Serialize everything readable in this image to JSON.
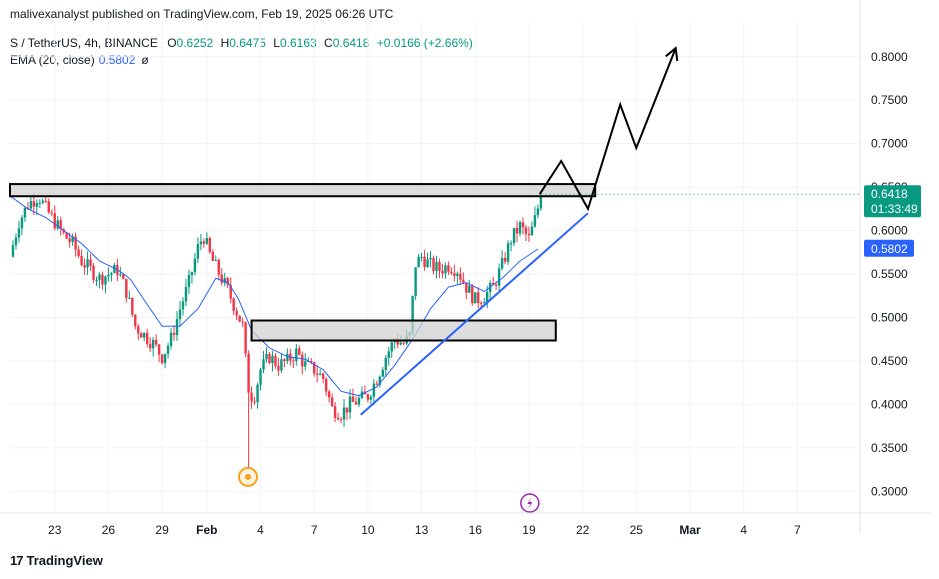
{
  "header": {
    "publisher_line": "malivexanalyst published on TradingView.com, Feb 19, 2025 06:26 UTC"
  },
  "legend": {
    "symbol": "S / TetherUS, 4h, BINANCE",
    "open_label": "O",
    "open": "0.6252",
    "high_label": "H",
    "high": "0.6475",
    "low_label": "L",
    "low": "0.6163",
    "close_label": "C",
    "close": "0.6418",
    "change": "+0.0166 (+2.66%)",
    "ema_label": "EMA (20, close)",
    "ema_value": "0.5802",
    "ema_icon": "ø"
  },
  "price_badge": {
    "value": "0.6418",
    "countdown": "01:33:49",
    "color": "#089981"
  },
  "ema_badge": {
    "value": "0.5802",
    "color": "#2962ff"
  },
  "footer": {
    "logo_icon": "17",
    "logo_text": "TradingView"
  },
  "colors": {
    "up": "#089981",
    "down": "#f23645",
    "ema": "#2962ff",
    "trendline": "#2962ff",
    "zone_fill": "#d1d1d1",
    "grid": "#f0f3fa"
  },
  "chart_data": {
    "type": "candlestick",
    "ylim": [
      0.275,
      0.84
    ],
    "yticks": [
      0.3,
      0.35,
      0.4,
      0.45,
      0.5,
      0.55,
      0.6,
      0.65,
      0.7,
      0.75,
      0.8
    ],
    "ytick_labels": [
      "0.3000",
      "0.3500",
      "0.4000",
      "0.4500",
      "0.5000",
      "0.5500",
      "0.6000",
      "0.6500",
      "0.7000",
      "0.7500",
      "0.8000"
    ],
    "xlim": [
      0,
      47.5
    ],
    "xticks": [
      {
        "x": 2.5,
        "label": "23"
      },
      {
        "x": 5.5,
        "label": "26"
      },
      {
        "x": 8.5,
        "label": "29"
      },
      {
        "x": 11,
        "label": "Feb"
      },
      {
        "x": 14,
        "label": "4"
      },
      {
        "x": 17,
        "label": "7"
      },
      {
        "x": 20,
        "label": "10"
      },
      {
        "x": 23,
        "label": "13"
      },
      {
        "x": 26,
        "label": "16"
      },
      {
        "x": 29,
        "label": "19"
      },
      {
        "x": 32,
        "label": "22"
      },
      {
        "x": 35,
        "label": "25"
      },
      {
        "x": 38,
        "label": "Mar"
      },
      {
        "x": 41,
        "label": "4"
      },
      {
        "x": 44,
        "label": "7"
      }
    ],
    "price_keypoints": [
      [
        0.0,
        0.57
      ],
      [
        0.5,
        0.61
      ],
      [
        1.0,
        0.63
      ],
      [
        1.6,
        0.64
      ],
      [
        2.0,
        0.625
      ],
      [
        2.5,
        0.61
      ],
      [
        3.0,
        0.595
      ],
      [
        3.5,
        0.585
      ],
      [
        4.0,
        0.565
      ],
      [
        4.5,
        0.555
      ],
      [
        5.0,
        0.545
      ],
      [
        5.5,
        0.55
      ],
      [
        6.0,
        0.555
      ],
      [
        6.5,
        0.53
      ],
      [
        7.0,
        0.49
      ],
      [
        7.5,
        0.48
      ],
      [
        8.0,
        0.47
      ],
      [
        8.5,
        0.455
      ],
      [
        9.0,
        0.475
      ],
      [
        9.5,
        0.51
      ],
      [
        10.0,
        0.54
      ],
      [
        10.5,
        0.58
      ],
      [
        10.8,
        0.595
      ],
      [
        11.2,
        0.57
      ],
      [
        11.7,
        0.55
      ],
      [
        12.2,
        0.53
      ],
      [
        12.6,
        0.51
      ],
      [
        13.0,
        0.49
      ],
      [
        13.3,
        0.42
      ],
      [
        13.6,
        0.405
      ],
      [
        14.0,
        0.44
      ],
      [
        14.5,
        0.455
      ],
      [
        15.0,
        0.445
      ],
      [
        15.5,
        0.45
      ],
      [
        16.0,
        0.46
      ],
      [
        16.5,
        0.445
      ],
      [
        17.0,
        0.44
      ],
      [
        17.5,
        0.43
      ],
      [
        18.0,
        0.395
      ],
      [
        18.5,
        0.39
      ],
      [
        19.0,
        0.4
      ],
      [
        19.5,
        0.405
      ],
      [
        20.0,
        0.41
      ],
      [
        20.5,
        0.43
      ],
      [
        21.0,
        0.455
      ],
      [
        21.5,
        0.475
      ],
      [
        22.0,
        0.47
      ],
      [
        22.4,
        0.48
      ],
      [
        22.6,
        0.56
      ],
      [
        23.0,
        0.57
      ],
      [
        23.5,
        0.56
      ],
      [
        24.0,
        0.555
      ],
      [
        24.5,
        0.56
      ],
      [
        25.0,
        0.555
      ],
      [
        25.5,
        0.535
      ],
      [
        26.0,
        0.52
      ],
      [
        26.5,
        0.525
      ],
      [
        27.0,
        0.535
      ],
      [
        27.5,
        0.56
      ],
      [
        28.0,
        0.59
      ],
      [
        28.5,
        0.605
      ],
      [
        29.0,
        0.59
      ],
      [
        29.3,
        0.61
      ],
      [
        29.7,
        0.6418
      ]
    ],
    "ema_keypoints": [
      [
        0.0,
        0.64
      ],
      [
        1.0,
        0.625
      ],
      [
        2.0,
        0.615
      ],
      [
        3.0,
        0.6
      ],
      [
        4.0,
        0.585
      ],
      [
        5.0,
        0.565
      ],
      [
        6.0,
        0.555
      ],
      [
        6.7,
        0.545
      ],
      [
        7.5,
        0.52
      ],
      [
        8.5,
        0.49
      ],
      [
        9.5,
        0.49
      ],
      [
        10.5,
        0.51
      ],
      [
        11.5,
        0.545
      ],
      [
        12.2,
        0.54
      ],
      [
        12.8,
        0.52
      ],
      [
        13.5,
        0.485
      ],
      [
        14.5,
        0.465
      ],
      [
        15.5,
        0.455
      ],
      [
        16.5,
        0.452
      ],
      [
        17.5,
        0.44
      ],
      [
        18.5,
        0.415
      ],
      [
        19.5,
        0.41
      ],
      [
        20.5,
        0.42
      ],
      [
        21.5,
        0.445
      ],
      [
        22.5,
        0.475
      ],
      [
        23.5,
        0.51
      ],
      [
        24.5,
        0.535
      ],
      [
        25.5,
        0.54
      ],
      [
        26.5,
        0.53
      ],
      [
        27.5,
        0.545
      ],
      [
        28.5,
        0.565
      ],
      [
        29.6,
        0.5802
      ]
    ],
    "resistance_zone": {
      "x0": 0.0,
      "x1": 32.7,
      "y0": 0.6395,
      "y1": 0.6535
    },
    "support_zone": {
      "x0": 13.5,
      "x1": 30.5,
      "y0": 0.4735,
      "y1": 0.4965
    },
    "trendline": [
      [
        19.6,
        0.388
      ],
      [
        32.3,
        0.62
      ]
    ],
    "projection": [
      [
        29.6,
        0.6418
      ],
      [
        30.8,
        0.68
      ],
      [
        32.3,
        0.625
      ],
      [
        34.1,
        0.745
      ],
      [
        35.0,
        0.695
      ],
      [
        37.2,
        0.81
      ]
    ],
    "price_line": 0.6418
  }
}
